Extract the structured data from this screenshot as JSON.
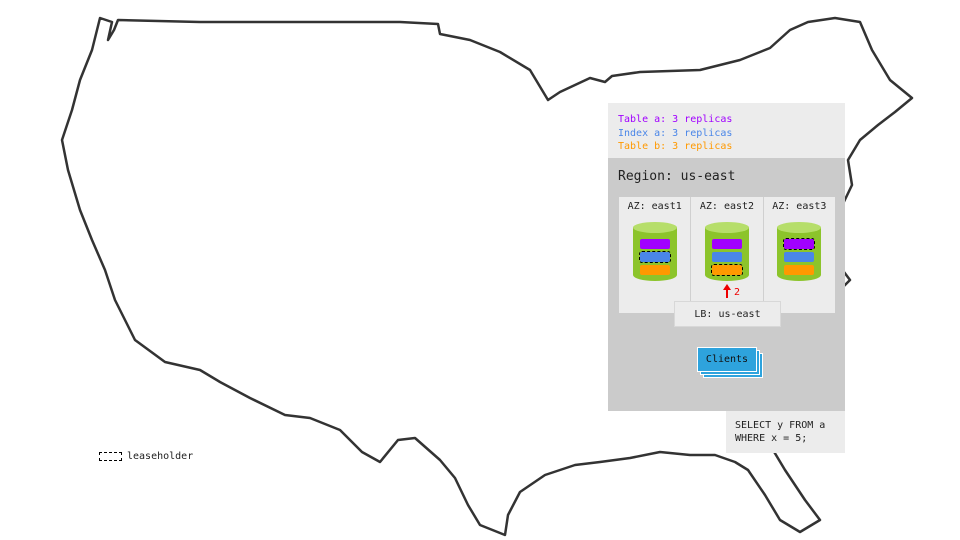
{
  "legend": [
    {
      "text": "Table a: 3 replicas",
      "color": "#a100ff"
    },
    {
      "text": "Index a: 3 replicas",
      "color": "#4a86e8"
    },
    {
      "text": "Table b: 3 replicas",
      "color": "#ff9900"
    }
  ],
  "region": {
    "title": "Region: us-east"
  },
  "azs": [
    {
      "label": "AZ: east1",
      "leaseholder": "index-a"
    },
    {
      "label": "AZ: east2",
      "leaseholder": "table-b"
    },
    {
      "label": "AZ: east3",
      "leaseholder": "table-a"
    }
  ],
  "load_balancer": {
    "label": "LB: us-east"
  },
  "request_arrow": {
    "label": "2",
    "color": "#e00000"
  },
  "clients": {
    "label": "Clients",
    "color": "#2ea3dd"
  },
  "query": {
    "text": "SELECT y FROM a\nWHERE x = 5;"
  },
  "leaseholder_key": {
    "label": "leaseholder"
  }
}
